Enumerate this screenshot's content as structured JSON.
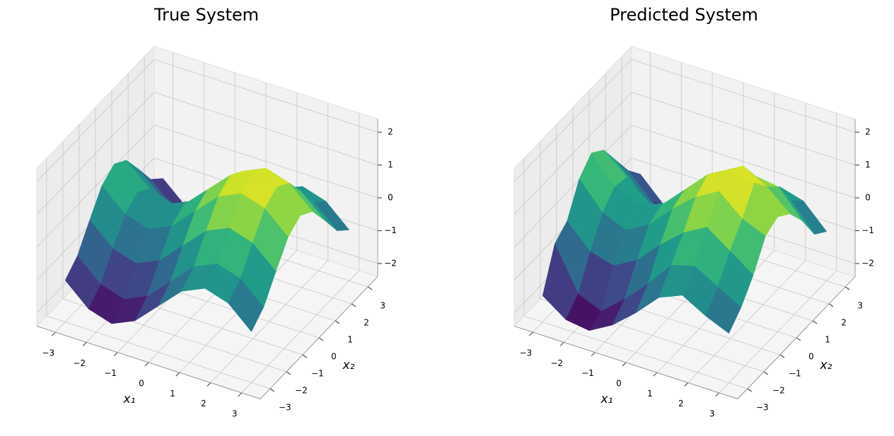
{
  "chart_data": [
    {
      "type": "surface",
      "title": "True System",
      "xlabel": "x₁",
      "ylabel": "x₂",
      "colormap": "viridis",
      "x": [
        -3,
        -2.25,
        -1.5,
        -0.75,
        0,
        0.75,
        1.5,
        2.25,
        3
      ],
      "y": [
        -3,
        -2.25,
        -1.5,
        -0.75,
        0,
        0.75,
        1.5,
        2.25,
        3
      ],
      "z": [
        [
          -1.13,
          -1.77,
          -1.99,
          -1.67,
          -0.99,
          -0.31,
          0.01,
          -0.21,
          -0.85
        ],
        [
          -0.77,
          -1.41,
          -1.63,
          -1.31,
          -0.63,
          0.05,
          0.37,
          0.15,
          -0.49
        ],
        [
          -0.07,
          -0.71,
          -0.93,
          -0.61,
          0.07,
          0.75,
          1.07,
          0.85,
          0.21
        ],
        [
          0.59,
          -0.05,
          -0.27,
          0.05,
          0.73,
          1.41,
          1.73,
          1.51,
          0.87
        ],
        [
          0.86,
          0.22,
          0,
          0.32,
          1,
          1.68,
          2,
          1.78,
          1.14
        ],
        [
          0.59,
          -0.05,
          -0.27,
          0.05,
          0.73,
          1.41,
          1.73,
          1.51,
          0.87
        ],
        [
          -0.07,
          -0.71,
          -0.93,
          -0.61,
          0.07,
          0.75,
          1.07,
          0.85,
          0.21
        ],
        [
          -0.77,
          -1.41,
          -1.63,
          -1.31,
          -0.63,
          0.05,
          0.37,
          0.15,
          -0.49
        ],
        [
          -1.13,
          -1.77,
          -1.99,
          -1.67,
          -0.99,
          -0.31,
          0.01,
          -0.21,
          -0.85
        ]
      ],
      "xlim": [
        -3.6,
        3.6
      ],
      "ylim": [
        -3.6,
        3.6
      ],
      "zlim": [
        -2.4,
        2.4
      ],
      "xticks": [
        {
          "value": -3,
          "label": "−3"
        },
        {
          "value": -2,
          "label": "−2"
        },
        {
          "value": -1,
          "label": "−1"
        },
        0,
        1,
        2,
        3
      ],
      "yticks": [
        {
          "value": -3,
          "label": "−3"
        },
        {
          "value": -2,
          "label": "−2"
        },
        {
          "value": -1,
          "label": "−1"
        },
        0,
        1,
        2,
        3
      ],
      "zticks": [
        {
          "value": -2,
          "label": "−2"
        },
        {
          "value": -1,
          "label": "−1"
        },
        0,
        1,
        2
      ]
    },
    {
      "type": "surface",
      "title": "Predicted System",
      "xlabel": "x₁",
      "ylabel": "x₂",
      "colormap": "viridis",
      "x": [
        -3,
        -2.25,
        -1.5,
        -0.75,
        0,
        0.75,
        1.5,
        2.25,
        3
      ],
      "y": [
        -3,
        -2.25,
        -1.5,
        -0.75,
        0,
        0.75,
        1.5,
        2.25,
        3
      ],
      "z": [
        [
          -1.6,
          -2.1,
          -2.2,
          -1.8,
          -1.2,
          -0.5,
          -0.2,
          -0.6,
          -0.9
        ],
        [
          -0.4,
          -1.7,
          -2.0,
          -1.4,
          -0.7,
          0.1,
          0.3,
          -0.1,
          -0.5
        ],
        [
          -0.1,
          -0.8,
          -1.0,
          -0.6,
          0.1,
          0.7,
          1.1,
          0.6,
          0.1
        ],
        [
          0.8,
          0.0,
          -0.3,
          0.1,
          0.8,
          1.4,
          1.8,
          1.2,
          0.9
        ],
        [
          1.2,
          0.4,
          0.1,
          0.3,
          1.0,
          1.7,
          2.0,
          1.9,
          1.1
        ],
        [
          0.9,
          0.3,
          -0.3,
          0.0,
          0.7,
          1.4,
          1.8,
          1.4,
          0.8
        ],
        [
          0.2,
          -0.5,
          -0.9,
          -0.6,
          0.1,
          0.8,
          1.1,
          1.0,
          0.2
        ],
        [
          -0.5,
          -1.2,
          -1.6,
          -1.2,
          -0.6,
          0.1,
          0.4,
          0.2,
          -0.6
        ],
        [
          -1.0,
          -1.7,
          -1.9,
          -1.6,
          -1.0,
          -0.3,
          0.0,
          -0.2,
          -0.9
        ]
      ],
      "xlim": [
        -3.6,
        3.6
      ],
      "ylim": [
        -3.6,
        3.6
      ],
      "zlim": [
        -2.4,
        2.4
      ],
      "xticks": [
        {
          "value": -3,
          "label": "−3"
        },
        {
          "value": -2,
          "label": "−2"
        },
        {
          "value": -1,
          "label": "−1"
        },
        0,
        1,
        2,
        3
      ],
      "yticks": [
        {
          "value": -3,
          "label": "−3"
        },
        {
          "value": -2,
          "label": "−2"
        },
        {
          "value": -1,
          "label": "−1"
        },
        0,
        1,
        2,
        3
      ],
      "zticks": [
        {
          "value": -2,
          "label": "−2"
        },
        {
          "value": -1,
          "label": "−1"
        },
        0,
        1,
        2
      ]
    }
  ]
}
